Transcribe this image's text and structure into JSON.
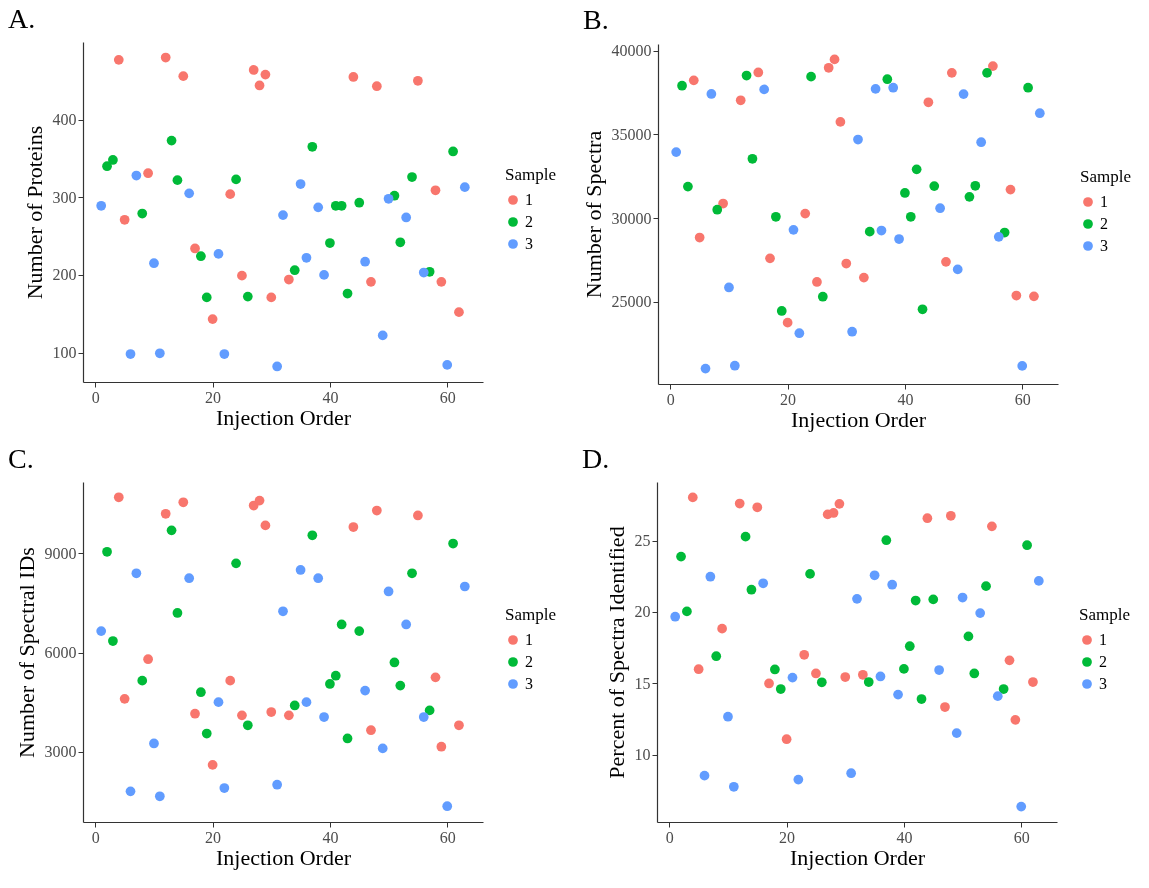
{
  "chart_data": [
    {
      "type": "scatter",
      "title": "A.",
      "xlabel": "Injection Order",
      "ylabel": "Number of Proteins",
      "legend_title": "Sample",
      "legend": "right",
      "marker": "circle",
      "xlim": [
        -2.1,
        66.1
      ],
      "ylim": [
        62,
        500
      ],
      "xticks": [
        0,
        20,
        40,
        60
      ],
      "yticks": [
        100,
        200,
        300,
        400
      ],
      "series": [
        {
          "name": "1",
          "color": "#f8766d",
          "x": [
            4,
            5,
            9,
            12,
            15,
            17,
            20,
            23,
            25,
            27,
            28,
            29,
            30,
            33,
            44,
            47,
            48,
            55,
            58,
            59,
            62
          ],
          "values": [
            477,
            271,
            331,
            480,
            456,
            234,
            143,
            304,
            199,
            464,
            444,
            458,
            171,
            194,
            455,
            191,
            443,
            450,
            309,
            191,
            152
          ]
        },
        {
          "name": "2",
          "color": "#00ba38",
          "x": [
            2,
            3,
            8,
            13,
            14,
            18,
            19,
            24,
            26,
            34,
            37,
            40,
            41,
            42,
            43,
            45,
            51,
            52,
            54,
            57,
            61
          ],
          "values": [
            340,
            348,
            279,
            373,
            322,
            224,
            171,
            323,
            172,
            206,
            365,
            241,
            289,
            289,
            176,
            293,
            302,
            242,
            326,
            204,
            359
          ]
        },
        {
          "name": "3",
          "color": "#619cff",
          "x": [
            1,
            6,
            7,
            10,
            11,
            16,
            21,
            22,
            31,
            32,
            35,
            36,
            38,
            39,
            46,
            49,
            50,
            53,
            56,
            60,
            63
          ],
          "values": [
            289,
            98,
            328,
            215,
            99,
            305,
            227,
            98,
            82,
            277,
            317,
            222,
            287,
            200,
            217,
            122,
            298,
            274,
            203,
            84,
            313
          ]
        }
      ]
    },
    {
      "type": "scatter",
      "title": "B.",
      "xlabel": "Injection Order",
      "ylabel": "Number of Spectra",
      "legend_title": "Sample",
      "legend": "right",
      "marker": "circle",
      "xlim": [
        -2.1,
        66.1
      ],
      "ylim": [
        20100,
        40390
      ],
      "xticks": [
        0,
        20,
        40,
        60
      ],
      "yticks": [
        25000,
        30000,
        35000,
        40000
      ],
      "series": [
        {
          "name": "1",
          "color": "#f8766d",
          "x": [
            4,
            5,
            9,
            12,
            15,
            17,
            20,
            23,
            25,
            27,
            28,
            29,
            30,
            33,
            44,
            47,
            48,
            55,
            58,
            59,
            62
          ],
          "values": [
            38220,
            28840,
            30870,
            37030,
            38690,
            27600,
            23760,
            30270,
            26190,
            38970,
            39470,
            35740,
            27290,
            26450,
            36910,
            27390,
            38670,
            39070,
            31700,
            25380,
            25330
          ]
        },
        {
          "name": "2",
          "color": "#00ba38",
          "x": [
            2,
            3,
            8,
            13,
            14,
            18,
            19,
            24,
            26,
            34,
            37,
            40,
            41,
            42,
            43,
            45,
            51,
            52,
            54,
            57,
            61
          ],
          "values": [
            37900,
            31880,
            30500,
            38510,
            33540,
            30080,
            24460,
            38440,
            25310,
            29190,
            38290,
            31500,
            30080,
            32910,
            24560,
            31910,
            31270,
            31930,
            38670,
            29140,
            37780
          ]
        },
        {
          "name": "3",
          "color": "#619cff",
          "x": [
            1,
            6,
            7,
            10,
            11,
            16,
            21,
            22,
            31,
            32,
            35,
            36,
            38,
            39,
            46,
            49,
            50,
            53,
            56,
            60,
            63
          ],
          "values": [
            33940,
            21020,
            37410,
            25860,
            21190,
            37680,
            29300,
            23130,
            23220,
            34690,
            37710,
            29260,
            37780,
            28750,
            30590,
            26940,
            37400,
            34530,
            28880,
            21180,
            36260
          ]
        }
      ]
    },
    {
      "type": "scatter",
      "title": "C.",
      "xlabel": "Injection Order",
      "ylabel": "Number of Spectral IDs",
      "legend_title": "Sample",
      "legend": "right",
      "marker": "circle",
      "xlim": [
        -2.1,
        66.1
      ],
      "ylim": [
        872,
        11163
      ],
      "xticks": [
        0,
        20,
        40,
        60
      ],
      "yticks": [
        3000,
        6000,
        9000
      ],
      "series": [
        {
          "name": "1",
          "color": "#f8766d",
          "x": [
            4,
            5,
            9,
            12,
            15,
            17,
            20,
            23,
            25,
            27,
            28,
            29,
            30,
            33,
            44,
            47,
            48,
            55,
            58,
            59,
            62
          ],
          "values": [
            10700,
            4600,
            5800,
            10200,
            10550,
            4150,
            2600,
            5150,
            4100,
            10450,
            10600,
            9850,
            4200,
            4100,
            9800,
            3650,
            10300,
            10150,
            5250,
            3150,
            3800
          ]
        },
        {
          "name": "2",
          "color": "#00ba38",
          "x": [
            2,
            3,
            8,
            13,
            14,
            18,
            19,
            24,
            26,
            34,
            37,
            40,
            41,
            42,
            43,
            45,
            51,
            52,
            54,
            57,
            61
          ],
          "values": [
            9050,
            6350,
            5150,
            9700,
            7200,
            4800,
            3550,
            8700,
            3800,
            4400,
            9550,
            5050,
            5300,
            6850,
            3400,
            6650,
            5700,
            5000,
            8400,
            4250,
            9300
          ]
        },
        {
          "name": "3",
          "color": "#619cff",
          "x": [
            1,
            6,
            7,
            10,
            11,
            16,
            21,
            22,
            31,
            32,
            35,
            36,
            38,
            39,
            46,
            49,
            50,
            53,
            56,
            60,
            63
          ],
          "values": [
            6650,
            1800,
            8400,
            3250,
            1650,
            8250,
            4500,
            1900,
            2000,
            7250,
            8500,
            4500,
            8250,
            4050,
            4850,
            3100,
            7850,
            6850,
            4050,
            1350,
            8000
          ]
        }
      ]
    },
    {
      "type": "scatter",
      "title": "D.",
      "xlabel": "Injection Order",
      "ylabel": "Percent of Spectra Identified",
      "legend_title": "Sample",
      "legend": "right",
      "marker": "circle",
      "xlim": [
        -2.1,
        66.1
      ],
      "ylim": [
        5.28,
        29.11
      ],
      "xticks": [
        0,
        20,
        40,
        60
      ],
      "yticks": [
        10,
        15,
        20,
        25
      ],
      "series": [
        {
          "name": "1",
          "color": "#f8766d",
          "x": [
            4,
            5,
            9,
            12,
            15,
            17,
            20,
            23,
            25,
            27,
            28,
            29,
            30,
            33,
            44,
            47,
            48,
            55,
            58,
            59,
            62
          ],
          "values": [
            28.03,
            15.99,
            18.83,
            27.6,
            27.34,
            14.99,
            11.08,
            17.0,
            15.69,
            26.84,
            26.94,
            27.58,
            15.44,
            15.6,
            26.57,
            13.34,
            26.74,
            26.0,
            16.61,
            12.44,
            15.09
          ]
        },
        {
          "name": "2",
          "color": "#00ba38",
          "x": [
            2,
            3,
            8,
            13,
            14,
            18,
            19,
            24,
            26,
            34,
            37,
            40,
            41,
            42,
            43,
            45,
            51,
            52,
            54,
            57,
            61
          ],
          "values": [
            23.88,
            20.04,
            16.9,
            25.28,
            21.56,
            15.97,
            14.6,
            22.67,
            15.07,
            15.09,
            25.03,
            16.01,
            17.6,
            20.8,
            13.9,
            20.88,
            18.29,
            15.69,
            21.81,
            14.6,
            24.68
          ]
        },
        {
          "name": "3",
          "color": "#619cff",
          "x": [
            1,
            6,
            7,
            10,
            11,
            16,
            21,
            22,
            31,
            32,
            35,
            36,
            38,
            39,
            46,
            49,
            50,
            53,
            56,
            60,
            63
          ],
          "values": [
            19.67,
            8.53,
            22.47,
            12.66,
            7.75,
            22.01,
            15.4,
            8.25,
            8.7,
            20.92,
            22.57,
            15.48,
            21.91,
            14.21,
            15.93,
            11.51,
            21.01,
            19.92,
            14.1,
            6.36,
            22.18
          ]
        }
      ]
    }
  ]
}
